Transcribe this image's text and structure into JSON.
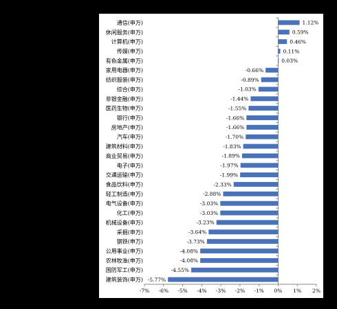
{
  "chart_data": {
    "type": "bar",
    "orientation": "horizontal",
    "title": "",
    "xlabel": "",
    "ylabel": "",
    "xlim": [
      -7,
      2
    ],
    "x_ticks": [
      "-7%",
      "-6%",
      "-5%",
      "-4%",
      "-3%",
      "-2%",
      "-1%",
      "0%",
      "1%",
      "2%"
    ],
    "grid": false,
    "legend": "none",
    "bar_color": "#4a72b8",
    "categories": [
      "通信(申万)",
      "休闲服务(申万)",
      "计算机(申万)",
      "传媒(申万)",
      "有色金属(申万)",
      "家用电器(申万)",
      "纺织服装(申万)",
      "综合(申万)",
      "非银金融(申万)",
      "医药生物(申万)",
      "银行(申万)",
      "房地产(申万)",
      "汽车(申万)",
      "建筑材料(申万)",
      "商业贸易(申万)",
      "电子(申万)",
      "交通运输(申万)",
      "食品饮料(申万)",
      "轻工制造(申万)",
      "电气设备(申万)",
      "化工(申万)",
      "机械设备(申万)",
      "采掘(申万)",
      "钢铁(申万)",
      "公用事业(申万)",
      "农林牧渔(申万)",
      "国防军工(申万)",
      "建筑装饰(申万)"
    ],
    "values": [
      1.12,
      0.59,
      0.46,
      0.11,
      0.03,
      -0.66,
      -0.89,
      -1.03,
      -1.44,
      -1.55,
      -1.66,
      -1.66,
      -1.7,
      -1.83,
      -1.89,
      -1.97,
      -1.99,
      -2.33,
      -2.88,
      -3.03,
      -3.03,
      -3.23,
      -3.64,
      -3.73,
      -4.08,
      -4.08,
      -4.55,
      -5.77
    ],
    "value_labels": [
      "1.12%",
      "0.59%",
      "0.46%",
      "0.11%",
      "0.03%",
      "-0.66%",
      "-0.89%",
      "-1.03%",
      "-1.44%",
      "-1.55%",
      "-1.66%",
      "-1.66%",
      "-1.70%",
      "-1.83%",
      "-1.89%",
      "-1.97%",
      "-1.99%",
      "-2.33%",
      "-2.88%",
      "-3.03%",
      "-3.03%",
      "-3.23%",
      "-3.64%",
      "-3.73%",
      "-4.08%",
      "-4.08%",
      "-4.55%",
      "-5.77%"
    ]
  }
}
